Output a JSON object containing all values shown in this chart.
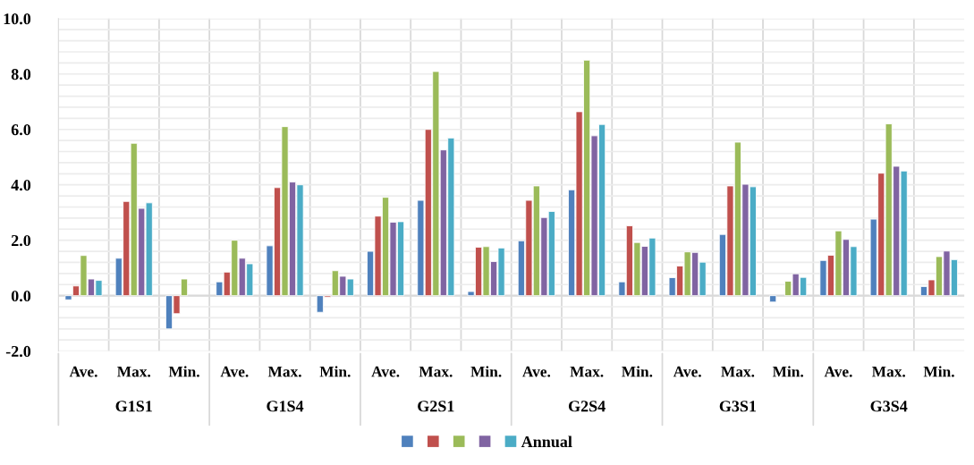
{
  "chart_data": {
    "type": "bar",
    "categories": [
      "Ave.",
      "Max.",
      "Min.",
      "Ave.",
      "Max.",
      "Min.",
      "Ave.",
      "Max.",
      "Min.",
      "Ave.",
      "Max.",
      "Min.",
      "Ave.",
      "Max.",
      "Min.",
      "Ave.",
      "Max.",
      "Min."
    ],
    "annotations": [
      "G1S1",
      "G1S4",
      "G2S1",
      "G2S4",
      "G3S1",
      "G3S4"
    ],
    "series": [
      {
        "color": "#4f81bd",
        "values": [
          -0.15,
          1.35,
          -1.2,
          0.5,
          1.8,
          -0.6,
          1.6,
          3.44,
          0.15,
          1.98,
          3.82,
          0.5,
          0.65,
          2.21,
          -0.23,
          1.27,
          2.76,
          0.33
        ]
      },
      {
        "color": "#c0504d",
        "values": [
          0.35,
          3.4,
          -0.65,
          0.85,
          3.9,
          -0.05,
          2.87,
          6.0,
          1.75,
          3.44,
          6.64,
          2.52,
          1.07,
          3.96,
          null,
          1.46,
          4.42,
          0.57
        ]
      },
      {
        "color": "#9bbb59",
        "values": [
          1.45,
          5.5,
          0.6,
          2.0,
          6.1,
          0.9,
          3.55,
          8.09,
          1.77,
          3.96,
          8.5,
          1.92,
          1.58,
          5.54,
          0.52,
          2.34,
          6.2,
          1.41
        ]
      },
      {
        "color": "#8064a2",
        "values": [
          0.6,
          3.15,
          null,
          1.35,
          4.1,
          0.7,
          2.65,
          5.26,
          1.23,
          2.82,
          5.77,
          1.78,
          1.56,
          4.02,
          0.79,
          2.03,
          4.67,
          1.61
        ]
      },
      {
        "name": "Annual",
        "color": "#4bacc6",
        "values": [
          0.55,
          3.35,
          null,
          1.15,
          4.0,
          0.6,
          2.67,
          5.69,
          1.72,
          3.04,
          6.18,
          2.08,
          1.21,
          3.93,
          0.66,
          1.77,
          4.5,
          1.3
        ]
      }
    ],
    "ylim": [
      -2,
      10
    ],
    "yticks": [
      {
        "value": -2,
        "label": "-2.0"
      },
      {
        "value": 0,
        "label": "0.0"
      },
      {
        "value": 2,
        "label": "2.0"
      },
      {
        "value": 4,
        "label": "4.0"
      },
      {
        "value": 6,
        "label": "6.0"
      },
      {
        "value": 8,
        "label": "8.0"
      },
      {
        "value": 10,
        "label": "10.0"
      }
    ],
    "grid": true,
    "legend": "bottom"
  }
}
